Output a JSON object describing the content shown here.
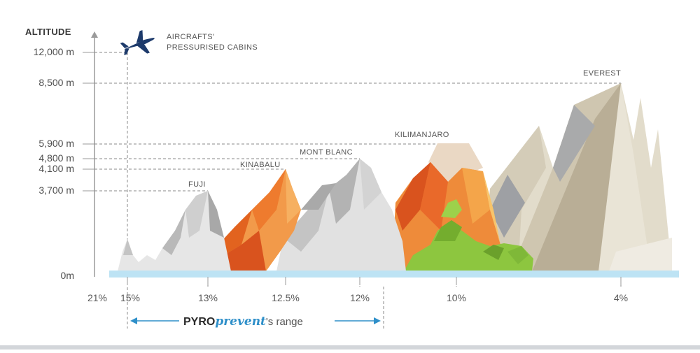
{
  "axis": {
    "title": "ALTITUDE",
    "ticks": [
      "12,000 m",
      "8,500 m",
      "5,900 m",
      "4,800 m",
      "4,100 m",
      "3,700 m",
      "0m"
    ]
  },
  "aircraft": {
    "line1": "AIRCRAFTS'",
    "line2": "PRESSURISED CABINS"
  },
  "peaks": {
    "fuji": "FUJI",
    "kinabalu": "KINABALU",
    "mont_blanc": "MONT BLANC",
    "kilimanjaro": "KILIMANJARO",
    "everest": "EVEREST"
  },
  "oxygen": [
    "21%",
    "15%",
    "13%",
    "12.5%",
    "12%",
    "10%",
    "4%"
  ],
  "range": {
    "brand_bold": "PYRO",
    "brand_italic": "prevent",
    "suffix": "'s range"
  },
  "colors": {
    "water": "#bde3f4",
    "orange": "#ee7b2e",
    "orange_dark": "#d9531e",
    "grey": "#c8c8c8",
    "beige": "#d7cfbd",
    "green": "#8dc63f",
    "brand_blue": "#2e8fc9"
  }
}
